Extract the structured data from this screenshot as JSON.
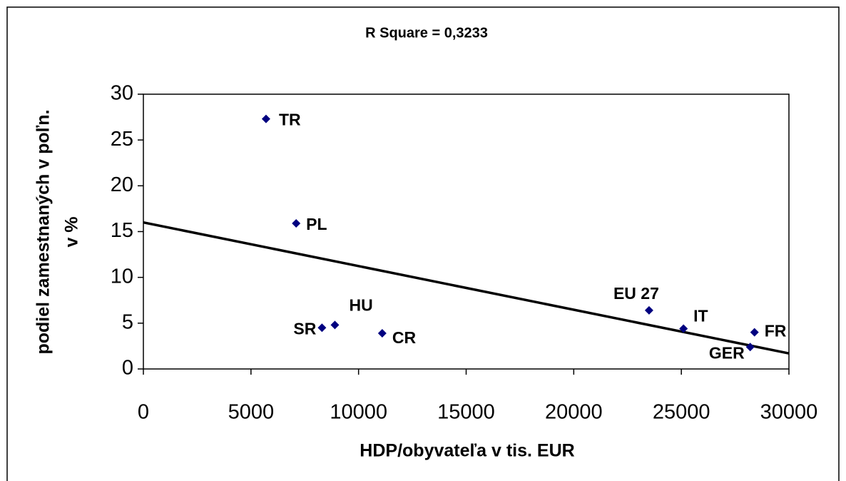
{
  "chart_data": {
    "type": "scatter",
    "title": "R Square = 0,3233",
    "xlabel": "HDP/obyvateľa v tis. EUR",
    "ylabel": [
      "podiel zamestnaných v poľn.",
      "v %"
    ],
    "point_labels": [
      "TR",
      "PL",
      "SR",
      "HU",
      "CR",
      "EU 27",
      "IT",
      "FR",
      "GER"
    ],
    "x": [
      5700,
      7100,
      8300,
      8900,
      11100,
      23500,
      25100,
      28400,
      28200
    ],
    "values": [
      27.3,
      15.9,
      4.5,
      4.8,
      3.9,
      6.4,
      4.4,
      4.0,
      2.4
    ],
    "color": "#000080",
    "trendline": {
      "x": [
        0,
        30000
      ],
      "values": [
        16.0,
        1.7
      ],
      "color": "#000000"
    },
    "xlim": [
      0,
      30000
    ],
    "xticks": [
      0,
      5000,
      10000,
      15000,
      20000,
      25000,
      30000
    ],
    "ylim": [
      0,
      30
    ],
    "yticks": [
      0,
      5,
      10,
      15,
      20,
      25,
      30
    ],
    "grid": false
  }
}
